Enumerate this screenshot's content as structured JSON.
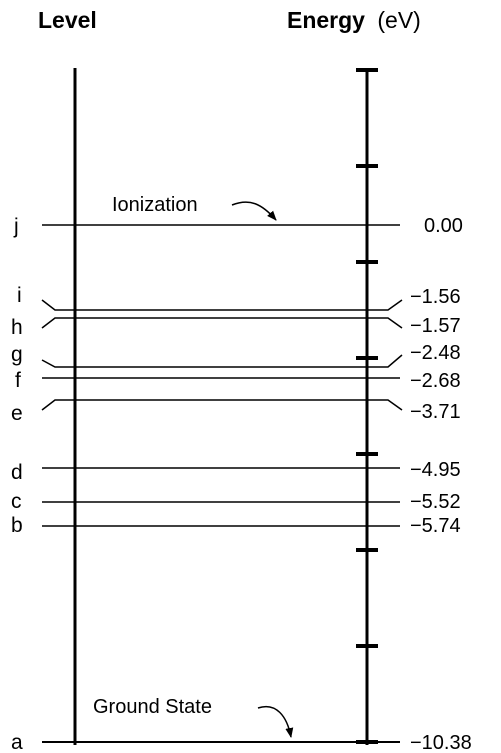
{
  "header": {
    "level_title": "Level",
    "energy_title": "Energy",
    "energy_unit": "(eV)"
  },
  "levels": [
    {
      "letter": "j",
      "energy": "0.00"
    },
    {
      "letter": "i",
      "energy": "−1.56"
    },
    {
      "letter": "h",
      "energy": "−1.57"
    },
    {
      "letter": "g",
      "energy": "−2.48"
    },
    {
      "letter": "f",
      "energy": "−2.68"
    },
    {
      "letter": "e",
      "energy": "−3.71"
    },
    {
      "letter": "d",
      "energy": "−4.95"
    },
    {
      "letter": "c",
      "energy": "−5.52"
    },
    {
      "letter": "b",
      "energy": "−5.74"
    },
    {
      "letter": "a",
      "energy": "−10.38"
    }
  ],
  "annotations": {
    "ionization": "Ionization",
    "ground_state": "Ground State"
  }
}
